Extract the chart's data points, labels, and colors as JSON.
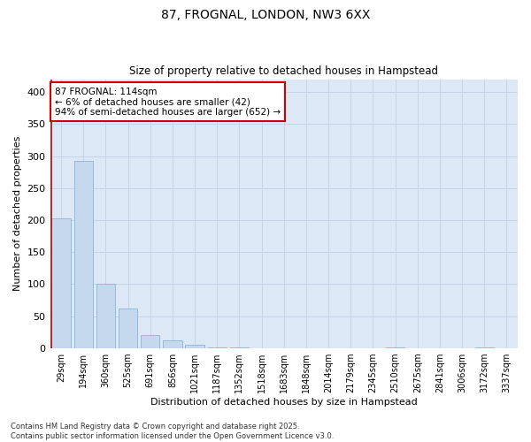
{
  "title_line1": "87, FROGNAL, LONDON, NW3 6XX",
  "title_line2": "Size of property relative to detached houses in Hampstead",
  "xlabel": "Distribution of detached houses by size in Hampstead",
  "ylabel": "Number of detached properties",
  "annotation_line1": "87 FROGNAL: 114sqm",
  "annotation_line2": "← 6% of detached houses are smaller (42)",
  "annotation_line3": "94% of semi-detached houses are larger (652) →",
  "categories": [
    "29sqm",
    "194sqm",
    "360sqm",
    "525sqm",
    "691sqm",
    "856sqm",
    "1021sqm",
    "1187sqm",
    "1352sqm",
    "1518sqm",
    "1683sqm",
    "1848sqm",
    "2014sqm",
    "2179sqm",
    "2345sqm",
    "2510sqm",
    "2675sqm",
    "2841sqm",
    "3006sqm",
    "3172sqm",
    "3337sqm"
  ],
  "values": [
    203,
    293,
    100,
    62,
    20,
    12,
    5,
    2,
    1,
    0,
    0,
    0,
    0,
    0,
    0,
    2,
    0,
    0,
    0,
    1,
    0
  ],
  "bar_color": "#c5d8ee",
  "bar_edge_color": "#7aaed4",
  "highlight_color": "#cc0000",
  "grid_color": "#c5d4e8",
  "plot_bg_color": "#dce8f5",
  "fig_bg_color": "#ffffff",
  "annotation_box_bg": "#ffffff",
  "annotation_box_edge": "#cc0000",
  "ylim": [
    0,
    420
  ],
  "yticks": [
    0,
    50,
    100,
    150,
    200,
    250,
    300,
    350,
    400
  ],
  "footer_line1": "Contains HM Land Registry data © Crown copyright and database right 2025.",
  "footer_line2": "Contains public sector information licensed under the Open Government Licence v3.0."
}
